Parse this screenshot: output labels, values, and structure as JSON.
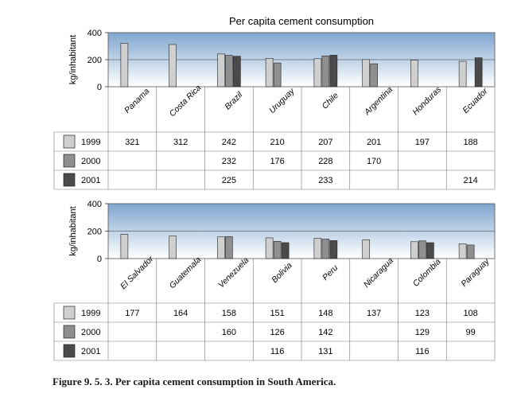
{
  "title": "Per capita cement consumption",
  "caption": "Figure 9. 5. 3. Per capita cement consumption in South America.",
  "colors": {
    "1999": "#cfcfcf",
    "2000": "#8f8f8f",
    "2001": "#4a4a4a",
    "plot_top": "#7fa6cf",
    "plot_bottom": "#ffffff"
  },
  "chart_data": [
    {
      "type": "bar",
      "title": "Per capita cement consumption",
      "ylabel": "kg/inhabitant",
      "ylim": [
        0,
        400
      ],
      "yticks": [
        0,
        200,
        400
      ],
      "categories": [
        "Panama",
        "Costa Rica",
        "Brazil",
        "Uruguay",
        "Chile",
        "Argentina",
        "Honduras",
        "Ecuador"
      ],
      "series": [
        {
          "name": "1999",
          "values": [
            321,
            312,
            242,
            210,
            207,
            201,
            197,
            188
          ]
        },
        {
          "name": "2000",
          "values": [
            null,
            null,
            232,
            176,
            228,
            170,
            null,
            null
          ]
        },
        {
          "name": "2001",
          "values": [
            null,
            null,
            225,
            null,
            233,
            null,
            null,
            214
          ]
        }
      ]
    },
    {
      "type": "bar",
      "ylabel": "kg/inhabitant",
      "ylim": [
        0,
        400
      ],
      "yticks": [
        0,
        200,
        400
      ],
      "categories": [
        "El Salvador",
        "Guatemala",
        "Venezuela",
        "Bolivia",
        "Peru",
        "Nicaragua",
        "Colombia",
        "Paraguay"
      ],
      "series": [
        {
          "name": "1999",
          "values": [
            177,
            164,
            158,
            151,
            148,
            137,
            123,
            108
          ]
        },
        {
          "name": "2000",
          "values": [
            null,
            null,
            160,
            126,
            142,
            null,
            129,
            99
          ]
        },
        {
          "name": "2001",
          "values": [
            null,
            null,
            null,
            116,
            131,
            null,
            116,
            null
          ]
        }
      ]
    }
  ]
}
